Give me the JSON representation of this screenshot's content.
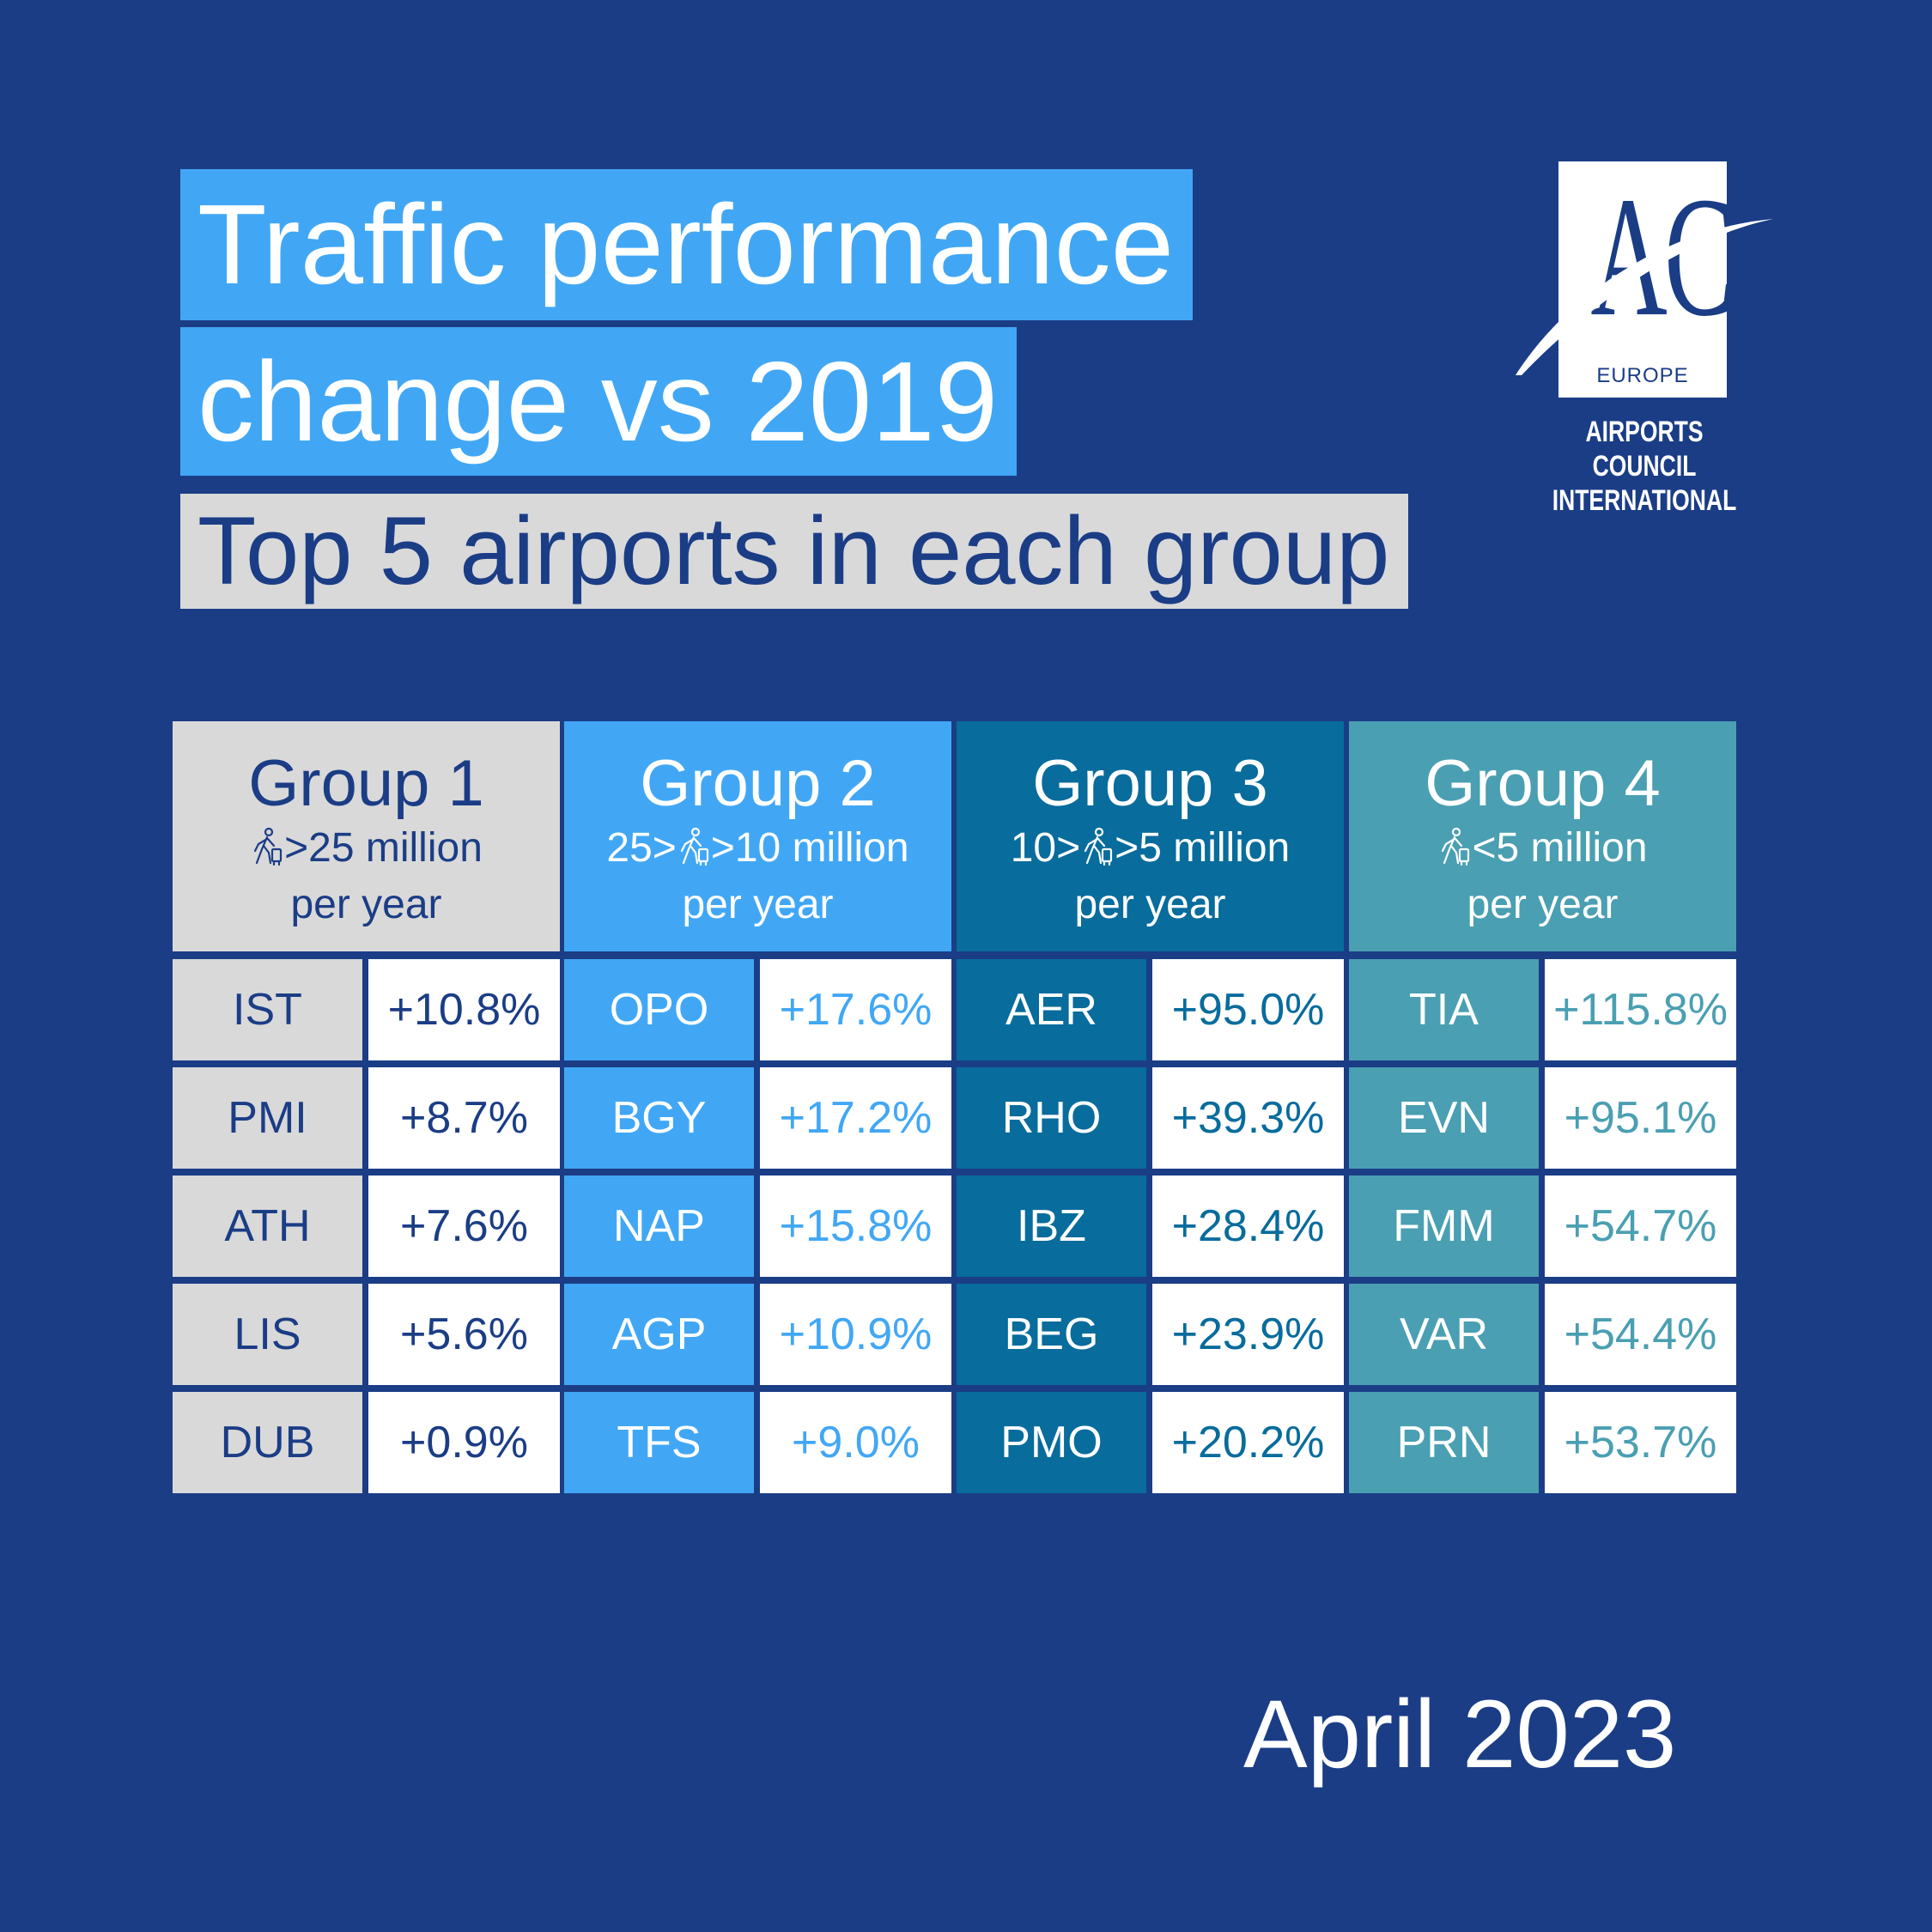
{
  "title_line1": "Traffic performance",
  "title_line2": "change vs 2019",
  "subtitle": "Top 5 airports in each group",
  "logo": {
    "mark": "ACI",
    "region": "EUROPE",
    "name_line1": "AIRPORTS COUNCIL",
    "name_line2": "INTERNATIONAL"
  },
  "colors": {
    "background": "#1b3d86",
    "group1": "#d9d9d9",
    "group2": "#41a7f5",
    "group3": "#086c9c",
    "group4": "#4a9fb2",
    "white": "#ffffff"
  },
  "groups": [
    {
      "title": "Group 1",
      "range_prefix": "",
      "range_suffix": ">25 million",
      "per": "per year",
      "icon": "traveller-icon",
      "rows": [
        {
          "code": "IST",
          "change": "+10.8%"
        },
        {
          "code": "PMI",
          "change": "+8.7%"
        },
        {
          "code": "ATH",
          "change": "+7.6%"
        },
        {
          "code": "LIS",
          "change": "+5.6%"
        },
        {
          "code": "DUB",
          "change": "+0.9%"
        }
      ]
    },
    {
      "title": "Group 2",
      "range_prefix": "25>",
      "range_suffix": ">10 million",
      "per": "per year",
      "icon": "traveller-icon",
      "rows": [
        {
          "code": "OPO",
          "change": "+17.6%"
        },
        {
          "code": "BGY",
          "change": "+17.2%"
        },
        {
          "code": "NAP",
          "change": "+15.8%"
        },
        {
          "code": "AGP",
          "change": "+10.9%"
        },
        {
          "code": "TFS",
          "change": "+9.0%"
        }
      ]
    },
    {
      "title": "Group 3",
      "range_prefix": "10>",
      "range_suffix": ">5 million",
      "per": "per year",
      "icon": "traveller-icon",
      "rows": [
        {
          "code": "AER",
          "change": "+95.0%"
        },
        {
          "code": "RHO",
          "change": "+39.3%"
        },
        {
          "code": "IBZ",
          "change": "+28.4%"
        },
        {
          "code": "BEG",
          "change": "+23.9%"
        },
        {
          "code": "PMO",
          "change": "+20.2%"
        }
      ]
    },
    {
      "title": "Group 4",
      "range_prefix": "",
      "range_suffix": "<5 million",
      "per": "per year",
      "icon": "traveller-icon",
      "rows": [
        {
          "code": "TIA",
          "change": "+115.8%"
        },
        {
          "code": "EVN",
          "change": "+95.1%"
        },
        {
          "code": "FMM",
          "change": "+54.7%"
        },
        {
          "code": "VAR",
          "change": "+54.4%"
        },
        {
          "code": "PRN",
          "change": "+53.7%"
        }
      ]
    }
  ],
  "date": "April 2023"
}
